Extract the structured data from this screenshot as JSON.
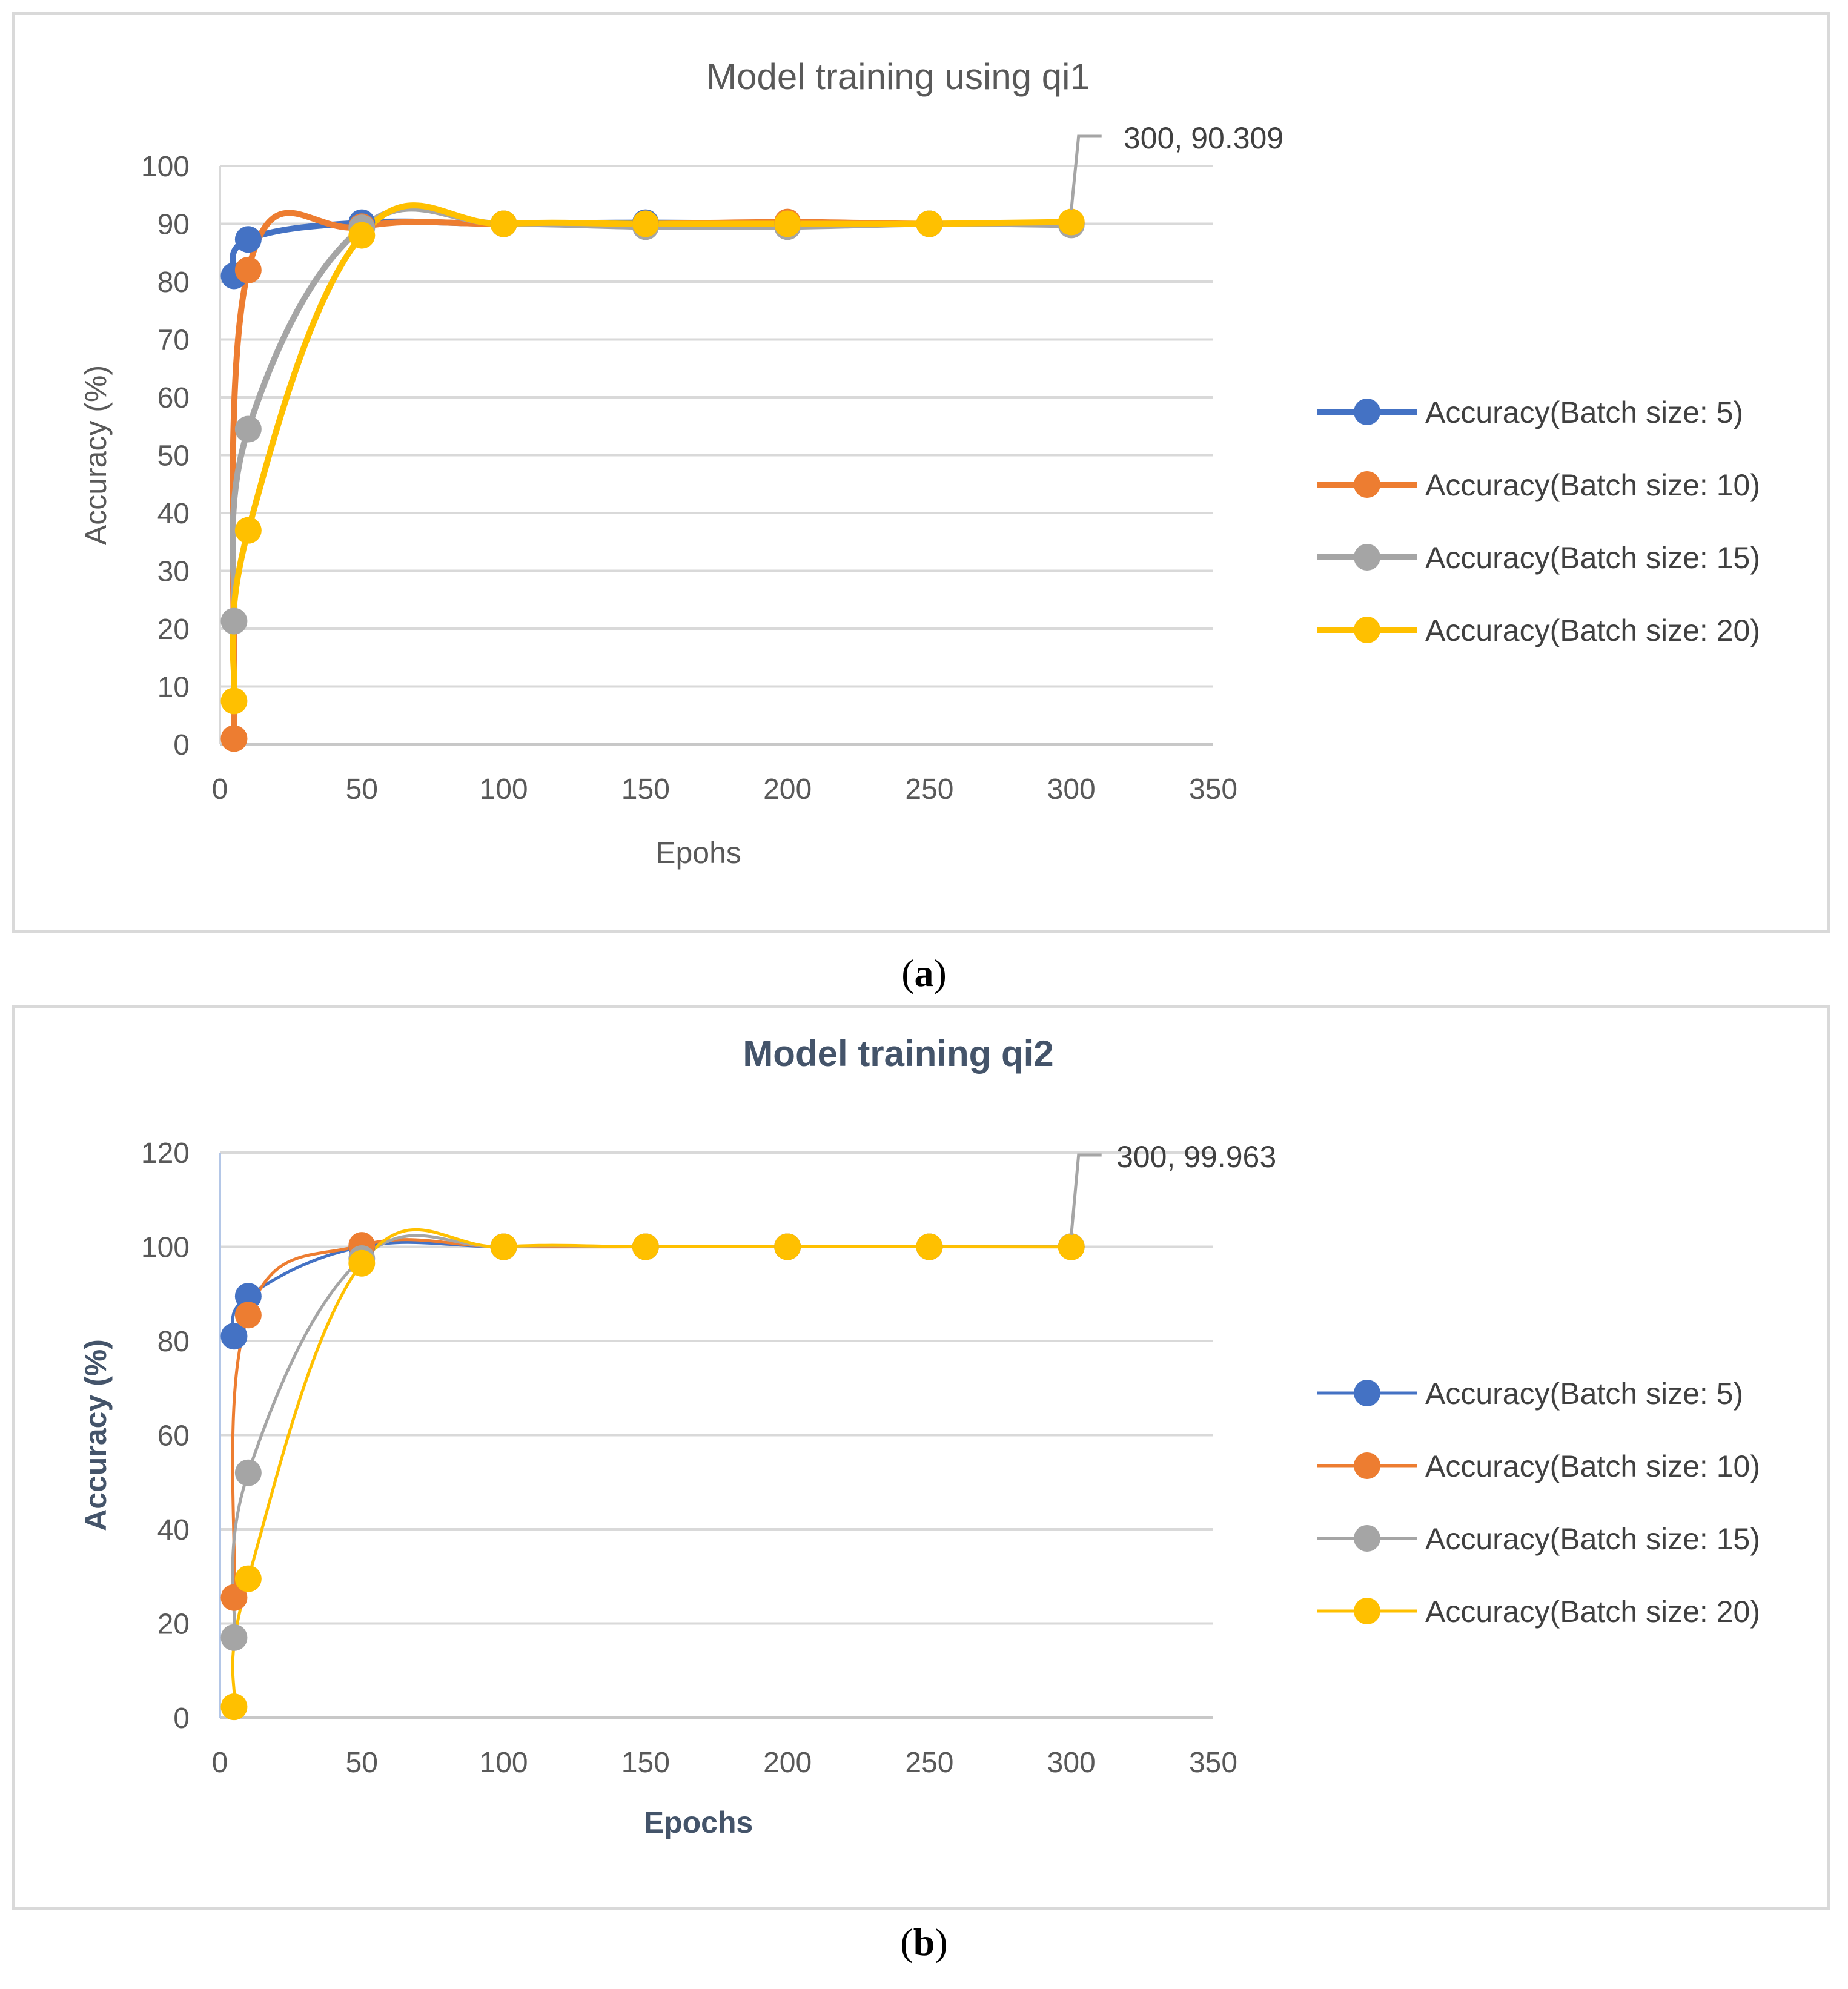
{
  "chart_data": [
    {
      "type": "line",
      "title": "Model training using qi1",
      "xlabel": "Epohs",
      "ylabel": "Accuracy (%)",
      "xlim": [
        0,
        350
      ],
      "ylim": [
        0,
        100
      ],
      "xticks": [
        0,
        50,
        100,
        150,
        200,
        250,
        300,
        350
      ],
      "yticks": [
        0,
        10,
        20,
        30,
        40,
        50,
        60,
        70,
        80,
        90,
        100
      ],
      "x": [
        5,
        10,
        50,
        100,
        150,
        200,
        250,
        300
      ],
      "series": [
        {
          "name": "Accuracy(Batch size: 5)",
          "color": "#4472c4",
          "values": [
            81,
            87.3,
            90.2,
            90,
            90.2,
            90,
            90,
            90
          ]
        },
        {
          "name": "Accuracy(Batch size: 10)",
          "color": "#ed7d31",
          "values": [
            1,
            82,
            89.5,
            90,
            90,
            90.3,
            90,
            90.2
          ]
        },
        {
          "name": "Accuracy(Batch size: 15)",
          "color": "#a5a5a5",
          "values": [
            21.3,
            54.5,
            89.3,
            90,
            89.5,
            89.5,
            90,
            89.8
          ]
        },
        {
          "name": "Accuracy(Batch size: 20)",
          "color": "#ffc000",
          "values": [
            7.5,
            37,
            88,
            90,
            90,
            90,
            90,
            90.309
          ]
        }
      ],
      "annotation": {
        "text": "300, 90.309",
        "x": 300,
        "y": 90.309
      },
      "legend_position": "right"
    },
    {
      "type": "line",
      "title": "Model training qi2",
      "xlabel": "Epochs",
      "ylabel": "Accuracy (%)",
      "xlim": [
        0,
        350
      ],
      "ylim": [
        0,
        120
      ],
      "xticks": [
        0,
        50,
        100,
        150,
        200,
        250,
        300,
        350
      ],
      "yticks": [
        0,
        20,
        40,
        60,
        80,
        100,
        120
      ],
      "x": [
        5,
        10,
        50,
        100,
        150,
        200,
        250,
        300
      ],
      "series": [
        {
          "name": "Accuracy(Batch size: 5)",
          "color": "#4472c4",
          "values": [
            81,
            89.5,
            100,
            100,
            100,
            100,
            100,
            100
          ]
        },
        {
          "name": "Accuracy(Batch size: 10)",
          "color": "#ed7d31",
          "values": [
            25.5,
            85.5,
            100.3,
            100,
            100,
            100,
            100,
            100
          ]
        },
        {
          "name": "Accuracy(Batch size: 15)",
          "color": "#a5a5a5",
          "values": [
            17,
            52,
            97.5,
            100,
            100,
            100,
            100,
            100
          ]
        },
        {
          "name": "Accuracy(Batch size: 20)",
          "color": "#ffc000",
          "values": [
            2.3,
            29.5,
            96.5,
            100,
            100,
            100,
            100,
            99.963
          ]
        }
      ],
      "annotation": {
        "text": "300, 99.963",
        "x": 300,
        "y": 99.963
      },
      "legend_position": "right"
    }
  ],
  "captions": {
    "a": {
      "open": "(",
      "letter": "a",
      "close": ")"
    },
    "b": {
      "open": "(",
      "letter": "b",
      "close": ")"
    }
  }
}
